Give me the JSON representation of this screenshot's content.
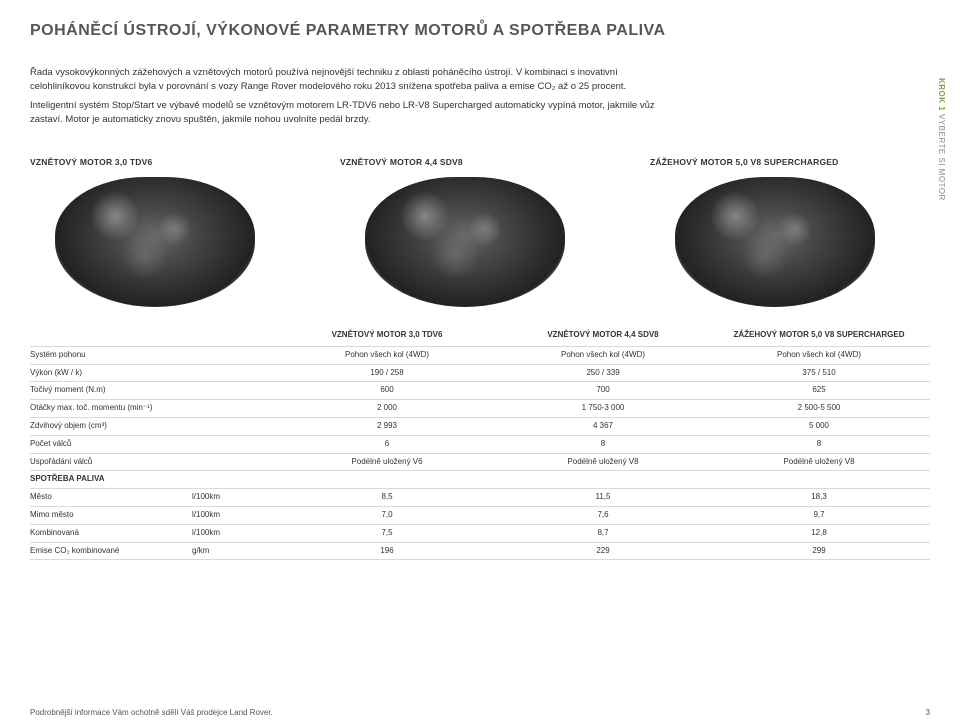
{
  "title": "POHÁNĚCÍ ÚSTROJÍ, VÝKONOVÉ PARAMETRY MOTORŮ A SPOTŘEBA PALIVA",
  "intro": {
    "p1": "Řada vysokovýkonných zážehových a vznětových motorů používá nejnovější techniku z oblasti poháněcího ústrojí. V kombinaci s inovativní celohliníkovou konstrukcí byla v porovnání s vozy Range Rover modelového roku 2013 snížena spotřeba paliva a emise CO₂ až o 25 procent.",
    "p2": "Inteligentní systém Stop/Start ve výbavě modelů se vznětovým motorem LR-TDV6 nebo LR-V8 Supercharged automaticky vypíná motor, jakmile vůz zastaví. Motor je automaticky znovu spuštěn, jakmile nohou uvolníte pedál brzdy."
  },
  "side_label": {
    "step": "KROK 1",
    "text": "VYBERTE SI MOTOR"
  },
  "engines": {
    "e1": "VZNĚTOVÝ MOTOR 3,0 TDV6",
    "e2": "VZNĚTOVÝ MOTOR 4,4 SDV8",
    "e3": "ZÁŽEHOVÝ MOTOR 5,0 V8 SUPERCHARGED"
  },
  "spec_table": {
    "headers": {
      "blank": "",
      "c1": "VZNĚTOVÝ MOTOR 3,0 TDV6",
      "c2": "VZNĚTOVÝ MOTOR 4,4 SDV8",
      "c3": "ZÁŽEHOVÝ MOTOR 5,0 V8 SUPERCHARGED"
    },
    "rows": {
      "drive": {
        "label": "Systém pohonu",
        "unit": "",
        "v1": "Pohon všech kol (4WD)",
        "v2": "Pohon všech kol (4WD)",
        "v3": "Pohon všech kol (4WD)"
      },
      "power": {
        "label": "Výkon (kW / k)",
        "unit": "",
        "v1": "190 / 258",
        "v2": "250 / 339",
        "v3": "375 / 510"
      },
      "torque": {
        "label": "Točivý moment (N.m)",
        "unit": "",
        "v1": "600",
        "v2": "700",
        "v3": "625"
      },
      "rpm": {
        "label": "Otáčky max. toč. momentu (min⁻¹)",
        "unit": "",
        "v1": "2 000",
        "v2": "1 750-3 000",
        "v3": "2 500-5 500"
      },
      "disp": {
        "label": "Zdvihový objem (cm³)",
        "unit": "",
        "v1": "2 993",
        "v2": "4 367",
        "v3": "5 000"
      },
      "cyl": {
        "label": "Počet válců",
        "unit": "",
        "v1": "6",
        "v2": "8",
        "v3": "8"
      },
      "layout": {
        "label": "Uspořádání válců",
        "unit": "",
        "v1": "Podélně uložený V6",
        "v2": "Podélně uložený V8",
        "v3": "Podélně uložený V8"
      }
    },
    "fuel_section": "SPOTŘEBA PALIVA",
    "fuel": {
      "city": {
        "label": "Město",
        "unit": "l/100km",
        "v1": "8,5",
        "v2": "11,5",
        "v3": "18,3"
      },
      "hwy": {
        "label": "Mimo město",
        "unit": "l/100km",
        "v1": "7,0",
        "v2": "7,6",
        "v3": "9,7"
      },
      "comb": {
        "label": "Kombinovaná",
        "unit": "l/100km",
        "v1": "7,5",
        "v2": "8,7",
        "v3": "12,8"
      },
      "co2": {
        "label": "Emise CO₂ kombinované",
        "unit": "g/km",
        "v1": "196",
        "v2": "229",
        "v3": "299"
      }
    }
  },
  "footer": {
    "text": "Podrobnější informace Vám ochotně sdělí Váš prodejce Land Rover.",
    "page": "3"
  }
}
